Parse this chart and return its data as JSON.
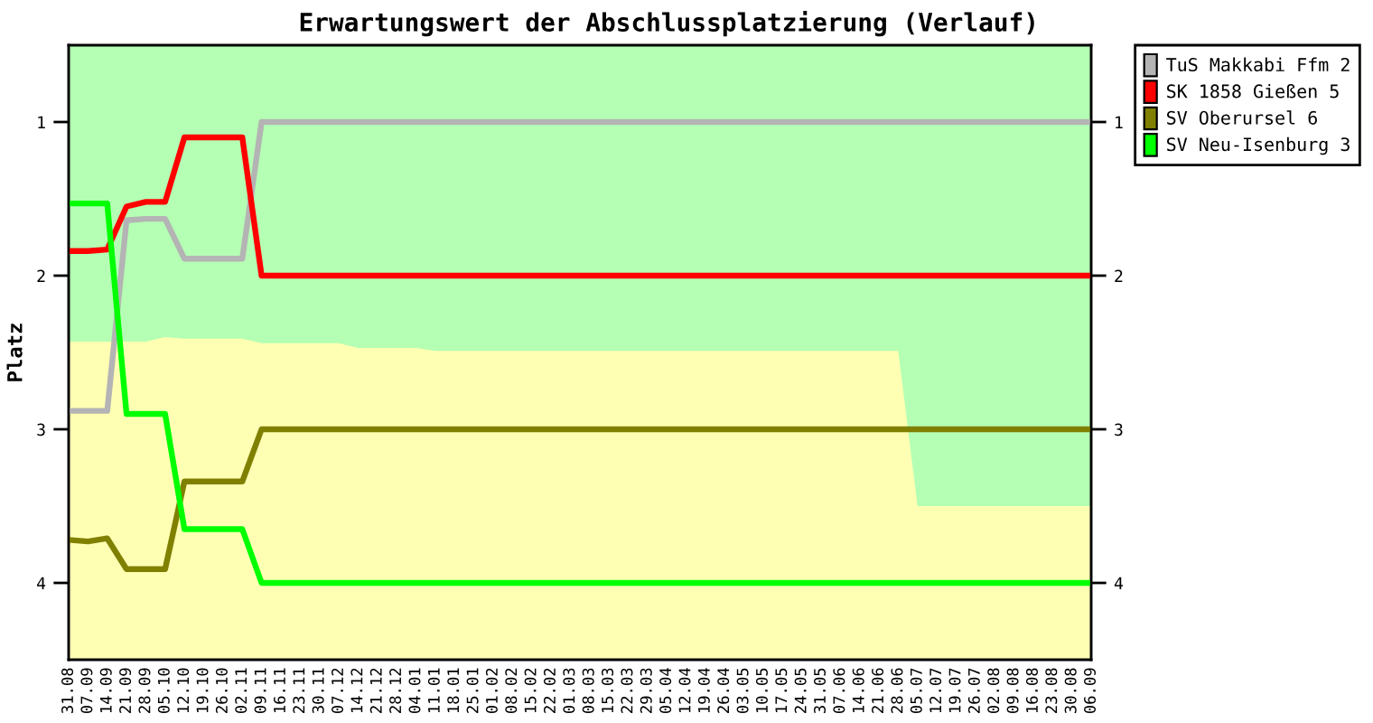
{
  "chart_data": {
    "type": "line",
    "title": "Erwartungswert der Abschlussplatzierung (Verlauf)",
    "ylabel": "Platz",
    "categories": [
      "31.08",
      "07.09",
      "14.09",
      "21.09",
      "28.09",
      "05.10",
      "12.10",
      "19.10",
      "26.10",
      "02.11",
      "09.11",
      "16.11",
      "23.11",
      "30.11",
      "07.12",
      "14.12",
      "21.12",
      "28.12",
      "04.01",
      "11.01",
      "18.01",
      "25.01",
      "01.02",
      "08.02",
      "15.02",
      "22.02",
      "01.03",
      "08.03",
      "15.03",
      "22.03",
      "29.03",
      "05.04",
      "12.04",
      "19.04",
      "26.04",
      "03.05",
      "10.05",
      "17.05",
      "24.05",
      "31.05",
      "07.06",
      "14.06",
      "21.06",
      "28.06",
      "05.07",
      "12.07",
      "19.07",
      "26.07",
      "02.08",
      "09.08",
      "16.08",
      "23.08",
      "30.08",
      "06.09"
    ],
    "series": [
      {
        "type": "area",
        "color": "#b4ffb4",
        "values": [
          2.43,
          2.43,
          2.43,
          2.43,
          2.43,
          2.4,
          2.41,
          2.41,
          2.41,
          2.41,
          2.44,
          2.44,
          2.44,
          2.44,
          2.44,
          2.47,
          2.47,
          2.47,
          2.47,
          2.49,
          2.49,
          2.49,
          2.49,
          2.49,
          2.49,
          2.49,
          2.49,
          2.49,
          2.49,
          2.49,
          2.49,
          2.49,
          2.49,
          2.49,
          2.49,
          2.49,
          2.49,
          2.49,
          2.49,
          2.49,
          2.49,
          2.49,
          2.49,
          2.49,
          3.5,
          3.5,
          3.5,
          3.5,
          3.5,
          3.5,
          3.5,
          3.5,
          3.5,
          3.5
        ]
      },
      {
        "name": "TuS Makkabi Ffm 2",
        "color": "#b4b4b4",
        "values": [
          2.88,
          2.88,
          2.88,
          1.64,
          1.63,
          1.63,
          1.89,
          1.89,
          1.89,
          1.89,
          1,
          1,
          1,
          1,
          1,
          1,
          1,
          1,
          1,
          1,
          1,
          1,
          1,
          1,
          1,
          1,
          1,
          1,
          1,
          1,
          1,
          1,
          1,
          1,
          1,
          1,
          1,
          1,
          1,
          1,
          1,
          1,
          1,
          1,
          1,
          1,
          1,
          1,
          1,
          1,
          1,
          1,
          1,
          1
        ]
      },
      {
        "name": "SK 1858 Gießen 5",
        "color": "#ff0000",
        "values": [
          1.84,
          1.84,
          1.83,
          1.55,
          1.52,
          1.52,
          1.1,
          1.1,
          1.1,
          1.1,
          2,
          2,
          2,
          2,
          2,
          2,
          2,
          2,
          2,
          2,
          2,
          2,
          2,
          2,
          2,
          2,
          2,
          2,
          2,
          2,
          2,
          2,
          2,
          2,
          2,
          2,
          2,
          2,
          2,
          2,
          2,
          2,
          2,
          2,
          2,
          2,
          2,
          2,
          2,
          2,
          2,
          2,
          2,
          2
        ]
      },
      {
        "name": "SV Oberursel 6",
        "color": "#808000",
        "values": [
          3.72,
          3.73,
          3.71,
          3.91,
          3.91,
          3.91,
          3.34,
          3.34,
          3.34,
          3.34,
          3,
          3,
          3,
          3,
          3,
          3,
          3,
          3,
          3,
          3,
          3,
          3,
          3,
          3,
          3,
          3,
          3,
          3,
          3,
          3,
          3,
          3,
          3,
          3,
          3,
          3,
          3,
          3,
          3,
          3,
          3,
          3,
          3,
          3,
          3,
          3,
          3,
          3,
          3,
          3,
          3,
          3,
          3,
          3
        ]
      },
      {
        "name": "SV Neu-Isenburg 3",
        "color": "#00ff00",
        "values": [
          1.53,
          1.53,
          1.53,
          2.9,
          2.9,
          2.9,
          3.65,
          3.65,
          3.65,
          3.65,
          4,
          4,
          4,
          4,
          4,
          4,
          4,
          4,
          4,
          4,
          4,
          4,
          4,
          4,
          4,
          4,
          4,
          4,
          4,
          4,
          4,
          4,
          4,
          4,
          4,
          4,
          4,
          4,
          4,
          4,
          4,
          4,
          4,
          4,
          4,
          4,
          4,
          4,
          4,
          4,
          4,
          4,
          4,
          4
        ]
      }
    ],
    "bands": [
      {
        "axis": "y",
        "from": 4.5,
        "to": 0.5,
        "color": "#ffffb4"
      }
    ],
    "ylim": [
      4.5,
      0.5
    ],
    "yticks": [
      1,
      2,
      3,
      4
    ],
    "y2lim": [
      4.5,
      0.5
    ],
    "y2ticks": [
      1,
      2,
      3,
      4
    ],
    "legend": "top right"
  }
}
